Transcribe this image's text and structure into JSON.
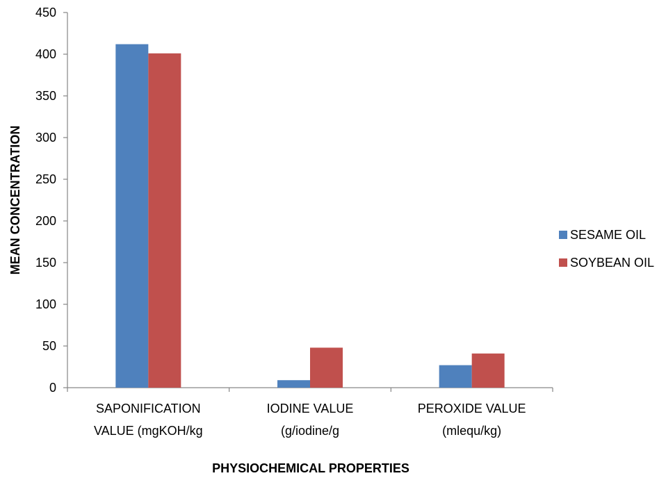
{
  "chart_data": {
    "type": "bar",
    "title": "",
    "xlabel": "PHYSIOCHEMICAL PROPERTIES",
    "ylabel": "MEAN CONCENTRATION",
    "ylim": [
      0,
      450
    ],
    "ytick_step": 50,
    "yticks": [
      "0",
      "50",
      "100",
      "150",
      "200",
      "250",
      "300",
      "350",
      "400",
      "450"
    ],
    "categories": [
      [
        "SAPONIFICATION",
        "VALUE (mgKOH/kg"
      ],
      [
        "IODINE VALUE",
        "(g/iodine/g"
      ],
      [
        "PEROXIDE VALUE",
        "(mlequ/kg)"
      ]
    ],
    "series": [
      {
        "name": "SESAME OIL",
        "color": "#4F81BD",
        "values": [
          412,
          9,
          27
        ]
      },
      {
        "name": "SOYBEAN OIL",
        "color": "#C0504D",
        "values": [
          401,
          48,
          41
        ]
      }
    ],
    "legend_position": "right",
    "grid": false
  }
}
